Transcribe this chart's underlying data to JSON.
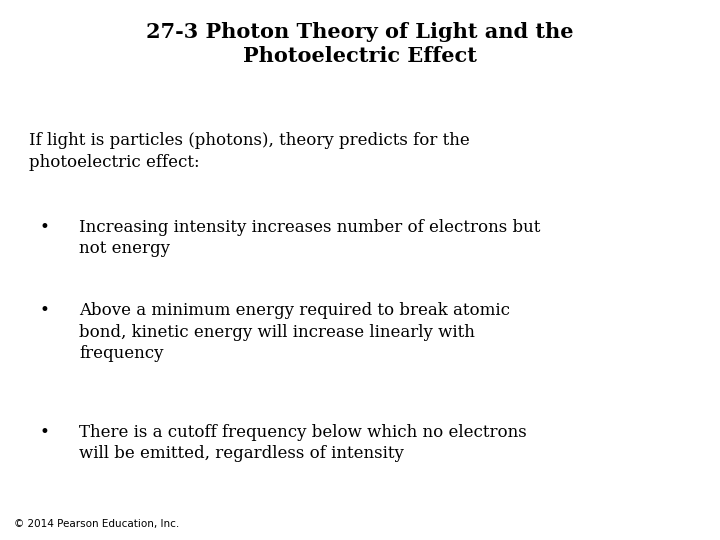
{
  "title_line1": "27-3 Photon Theory of Light and the",
  "title_line2": "Photoelectric Effect",
  "intro_text": "If light is particles (photons), theory predicts for the\nphotoelectric effect:",
  "bullet1_line1": "Increasing intensity increases number of electrons but",
  "bullet1_line2": "not energy",
  "bullet2_line1": "Above a minimum energy required to break atomic",
  "bullet2_line2": "bond, kinetic energy will increase linearly with",
  "bullet2_line3": "frequency",
  "bullet3_line1": "There is a cutoff frequency below which no electrons",
  "bullet3_line2": "will be emitted, regardless of intensity",
  "footer": "© 2014 Pearson Education, Inc.",
  "bg_color": "#ffffff",
  "text_color": "#000000",
  "title_fontsize": 15,
  "body_fontsize": 12,
  "footer_fontsize": 7.5
}
